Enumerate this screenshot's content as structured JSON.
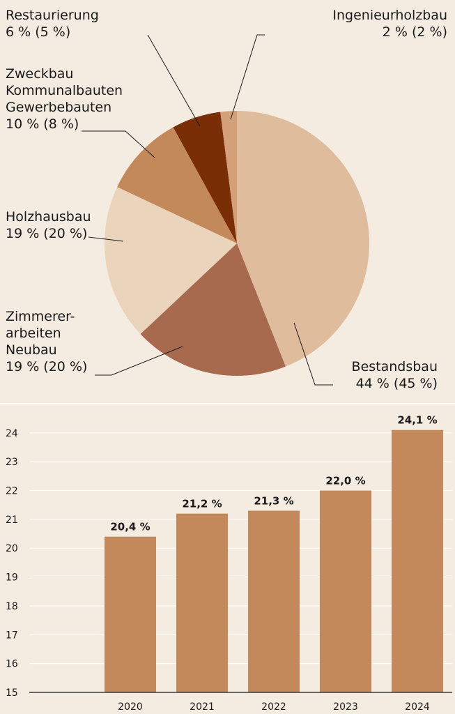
{
  "chart_data": [
    {
      "type": "pie",
      "slices": [
        {
          "label_lines": [
            "Bestandsbau",
            "44 % (45 %)"
          ],
          "value": 44,
          "previous": 45,
          "color": "#dfbd9c"
        },
        {
          "label_lines": [
            "Zimmerer-",
            "arbeiten",
            "Neubau",
            "19 % (20 %)"
          ],
          "value": 19,
          "previous": 20,
          "color": "#a86a4f"
        },
        {
          "label_lines": [
            "Holzhausbau",
            "19 % (20 %)"
          ],
          "value": 19,
          "previous": 20,
          "color": "#ebd4bc"
        },
        {
          "label_lines": [
            "Zweckbau",
            "Kommunalbauten",
            "Gewerbebauten",
            "10 % (8 %)"
          ],
          "value": 10,
          "previous": 8,
          "color": "#c4895a"
        },
        {
          "label_lines": [
            "Restaurierung",
            "6 % (5 %)"
          ],
          "value": 6,
          "previous": 5,
          "color": "#7a2e05"
        },
        {
          "label_lines": [
            "Ingenieurholzbau",
            "2 % (2 %)"
          ],
          "value": 2,
          "previous": 2,
          "color": "#d4a07a"
        }
      ]
    },
    {
      "type": "bar",
      "categories": [
        "2020",
        "2021",
        "2022",
        "2023",
        "2024"
      ],
      "values": [
        20.4,
        21.2,
        21.3,
        22.0,
        24.1
      ],
      "data_labels": [
        "20,4 %",
        "21,2 %",
        "21,3 %",
        "22,0 %",
        "24,1 %"
      ],
      "yticks": [
        "15",
        "16",
        "17",
        "18",
        "19",
        "20",
        "21",
        "22",
        "23",
        "24"
      ],
      "ylim": [
        15,
        24.6
      ],
      "grid": true,
      "bar_color": "#c4895a",
      "grid_color": "#ffffff"
    }
  ]
}
